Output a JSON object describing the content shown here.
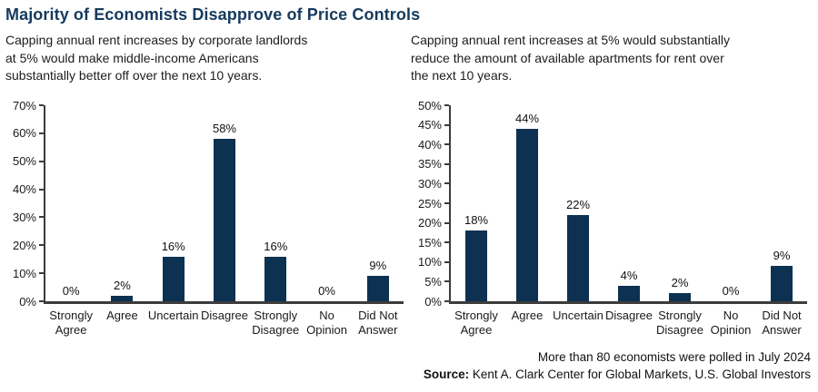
{
  "page": {
    "title": "Majority of Economists Disapprove of Price Controls",
    "footer_note": "More than 80 economists were polled in July 2024",
    "source_label": "Source:",
    "source_text": " Kent A. Clark Center for Global Markets, U.S. Global Investors"
  },
  "colors": {
    "title": "#153A5E",
    "bar": "#0D3150",
    "axis": "#3C3C3C",
    "text": "#1B1B1B"
  },
  "chart_data": [
    {
      "type": "bar",
      "title": "Capping annual rent increases by corporate landlords at 5% would make middle-income Americans substantially better off over the next 10 years.",
      "title_lines": [
        "Capping annual rent increases by corporate landlords",
        "at 5% would make middle-income Americans",
        "substantially better off over the next 10 years."
      ],
      "categories": [
        "Strongly Agree",
        "Agree",
        "Uncertain",
        "Disagree",
        "Strongly Disagree",
        "No Opinion",
        "Did Not Answer"
      ],
      "category_lines": [
        [
          "Strongly",
          "Agree"
        ],
        [
          "Agree"
        ],
        [
          "Uncertain"
        ],
        [
          "Disagree"
        ],
        [
          "Strongly",
          "Disagree"
        ],
        [
          "No",
          "Opinion"
        ],
        [
          "Did Not",
          "Answer"
        ]
      ],
      "values": [
        0,
        2,
        16,
        58,
        16,
        0,
        9
      ],
      "value_labels": [
        "0%",
        "2%",
        "16%",
        "58%",
        "16%",
        "0%",
        "9%"
      ],
      "xlabel": "",
      "ylabel": "",
      "ylim": [
        0,
        70
      ],
      "ytick_step": 10,
      "ytick_suffix": "%",
      "grid": false,
      "legend": null
    },
    {
      "type": "bar",
      "title": "Capping annual rent increases at 5% would substantially reduce the amount of available apartments for rent over the next 10 years.",
      "title_lines": [
        "Capping annual rent increases at 5% would substantially",
        "reduce the amount of available apartments for rent over",
        "the next 10 years."
      ],
      "categories": [
        "Strongly Agree",
        "Agree",
        "Uncertain",
        "Disagree",
        "Strongly Disagree",
        "No Opinion",
        "Did Not Answer"
      ],
      "category_lines": [
        [
          "Strongly",
          "Agree"
        ],
        [
          "Agree"
        ],
        [
          "Uncertain"
        ],
        [
          "Disagree"
        ],
        [
          "Strongly",
          "Disagree"
        ],
        [
          "No",
          "Opinion"
        ],
        [
          "Did Not",
          "Answer"
        ]
      ],
      "values": [
        18,
        44,
        22,
        4,
        2,
        0,
        9
      ],
      "value_labels": [
        "18%",
        "44%",
        "22%",
        "4%",
        "2%",
        "0%",
        "9%"
      ],
      "xlabel": "",
      "ylabel": "",
      "ylim": [
        0,
        50
      ],
      "ytick_step": 5,
      "ytick_suffix": "%",
      "grid": false,
      "legend": null
    }
  ]
}
